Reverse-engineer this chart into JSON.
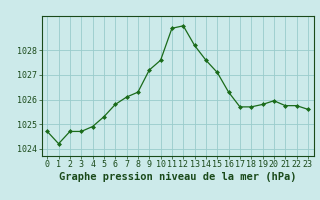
{
  "x": [
    0,
    1,
    2,
    3,
    4,
    5,
    6,
    7,
    8,
    9,
    10,
    11,
    12,
    13,
    14,
    15,
    16,
    17,
    18,
    19,
    20,
    21,
    22,
    23
  ],
  "y": [
    1024.7,
    1024.2,
    1024.7,
    1024.7,
    1024.9,
    1025.3,
    1025.8,
    1026.1,
    1026.3,
    1027.2,
    1027.6,
    1028.9,
    1029.0,
    1028.2,
    1027.6,
    1027.1,
    1026.3,
    1025.7,
    1025.7,
    1025.8,
    1025.95,
    1025.75,
    1025.75,
    1025.6
  ],
  "title": "Graphe pression niveau de la mer (hPa)",
  "xlim": [
    -0.5,
    23.5
  ],
  "ylim": [
    1023.7,
    1029.4
  ],
  "yticks": [
    1024,
    1025,
    1026,
    1027,
    1028
  ],
  "xticks": [
    0,
    1,
    2,
    3,
    4,
    5,
    6,
    7,
    8,
    9,
    10,
    11,
    12,
    13,
    14,
    15,
    16,
    17,
    18,
    19,
    20,
    21,
    22,
    23
  ],
  "line_color": "#1a6b1a",
  "marker": "D",
  "marker_size": 2.0,
  "bg_color": "#cceaea",
  "grid_color": "#99cccc",
  "title_fontsize": 7.5,
  "tick_fontsize": 6.0,
  "title_color": "#1a4a1a"
}
